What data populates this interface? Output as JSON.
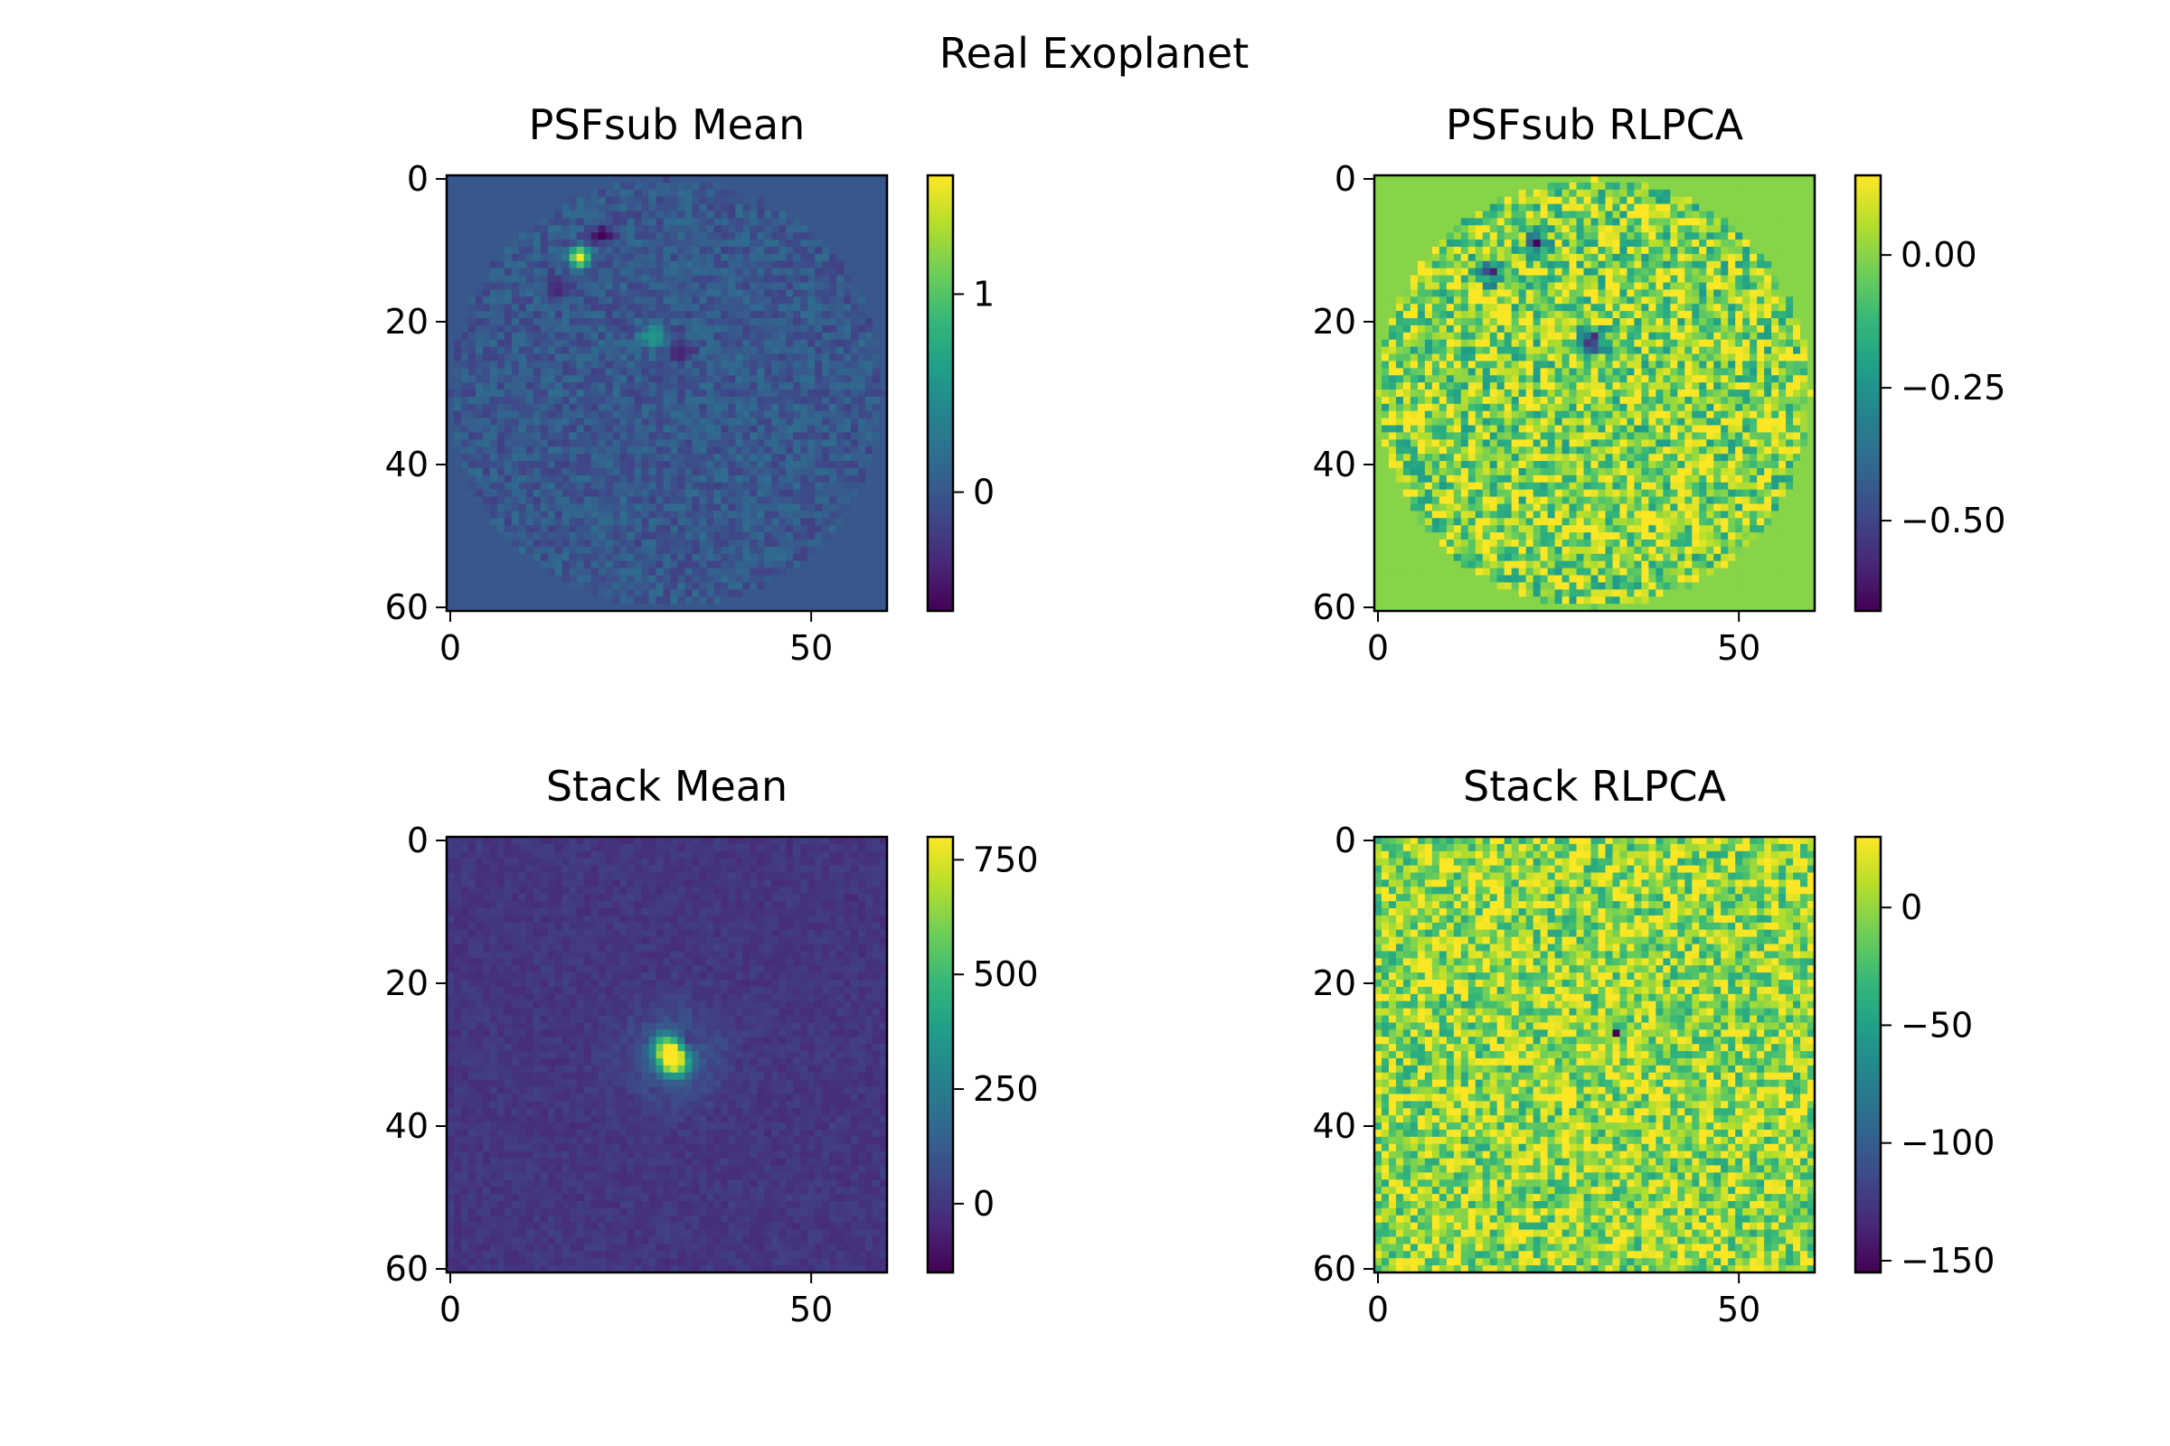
{
  "figure": {
    "title": "Real Exoplanet"
  },
  "colormap": {
    "name": "viridis",
    "stops": [
      "#440154",
      "#482878",
      "#3e4989",
      "#31688e",
      "#26828e",
      "#1f9e89",
      "#35b779",
      "#6ece58",
      "#b5de2b",
      "#fde725"
    ]
  },
  "chart_data": [
    {
      "type": "heatmap",
      "title": "PSFsub Mean",
      "shape": [
        61,
        61
      ],
      "xlim": [
        0,
        60
      ],
      "ylim": [
        60,
        0
      ],
      "xticks": [
        0,
        50
      ],
      "yticks": [
        0,
        20,
        40,
        60
      ],
      "colorbar": {
        "min": -0.6,
        "max": 1.6,
        "ticks": [
          0,
          1
        ],
        "tick_labels": [
          "0",
          "1"
        ]
      },
      "background_value": 0.0,
      "mask": {
        "type": "circle",
        "center": [
          30,
          30
        ],
        "radius": 30
      },
      "noise_amplitude": 0.18,
      "features": [
        {
          "x": 18,
          "y": 11,
          "value": 1.6,
          "sigma": 1.0
        },
        {
          "x": 28,
          "y": 22,
          "value": 0.65,
          "sigma": 1.2
        },
        {
          "x": 21,
          "y": 8,
          "value": -0.5,
          "sigma": 1.0
        },
        {
          "x": 15,
          "y": 15,
          "value": -0.45,
          "sigma": 1.0
        },
        {
          "x": 32,
          "y": 24,
          "value": -0.45,
          "sigma": 1.0
        }
      ]
    },
    {
      "type": "heatmap",
      "title": "PSFsub RLPCA",
      "shape": [
        61,
        61
      ],
      "xlim": [
        0,
        60
      ],
      "ylim": [
        60,
        0
      ],
      "xticks": [
        0,
        50
      ],
      "yticks": [
        0,
        20,
        40,
        60
      ],
      "colorbar": {
        "min": -0.67,
        "max": 0.15,
        "ticks": [
          0.0,
          -0.25,
          -0.5
        ],
        "tick_labels": [
          "0.00",
          "−0.25",
          "−0.50"
        ]
      },
      "background_value": 0.0,
      "mask": {
        "type": "circle",
        "center": [
          30,
          30
        ],
        "radius": 30
      },
      "noise_amplitude": 0.22,
      "features": [
        {
          "x": 22,
          "y": 9,
          "value": -0.65,
          "sigma": 1.0
        },
        {
          "x": 30,
          "y": 23,
          "value": -0.55,
          "sigma": 1.2
        },
        {
          "x": 16,
          "y": 13,
          "value": -0.45,
          "sigma": 1.2
        }
      ]
    },
    {
      "type": "heatmap",
      "title": "Stack Mean",
      "shape": [
        61,
        61
      ],
      "xlim": [
        0,
        60
      ],
      "ylim": [
        60,
        0
      ],
      "xticks": [
        0,
        50
      ],
      "yticks": [
        0,
        20,
        40,
        60
      ],
      "colorbar": {
        "min": -150,
        "max": 800,
        "ticks": [
          0,
          250,
          500,
          750
        ],
        "tick_labels": [
          "0",
          "250",
          "500",
          "750"
        ]
      },
      "background_value": 0,
      "noise_amplitude": 35,
      "features": [
        {
          "x": 31,
          "y": 31,
          "value": 780,
          "sigma": 1.4
        },
        {
          "x": 30,
          "y": 29,
          "value": 550,
          "sigma": 1.3
        },
        {
          "x": 31,
          "y": 30,
          "value": 120,
          "sigma": 4.5
        },
        {
          "x": 33,
          "y": 28,
          "value": -130,
          "sigma": 0.9
        }
      ]
    },
    {
      "type": "heatmap",
      "title": "Stack RLPCA",
      "shape": [
        61,
        61
      ],
      "xlim": [
        0,
        60
      ],
      "ylim": [
        60,
        0
      ],
      "xticks": [
        0,
        50
      ],
      "yticks": [
        0,
        20,
        40,
        60
      ],
      "colorbar": {
        "min": -155,
        "max": 30,
        "ticks": [
          0,
          -50,
          -100,
          -150
        ],
        "tick_labels": [
          "0",
          "−50",
          "−100",
          "−150"
        ]
      },
      "background_value": 0,
      "noise_amplitude": 45,
      "features": [
        {
          "x": 33,
          "y": 27,
          "value": -155,
          "sigma": 0.6
        },
        {
          "x": 31,
          "y": 31,
          "value": 30,
          "sigma": 0.6
        },
        {
          "x": 31,
          "y": 29,
          "value": 15,
          "sigma": 4.0
        }
      ]
    }
  ]
}
